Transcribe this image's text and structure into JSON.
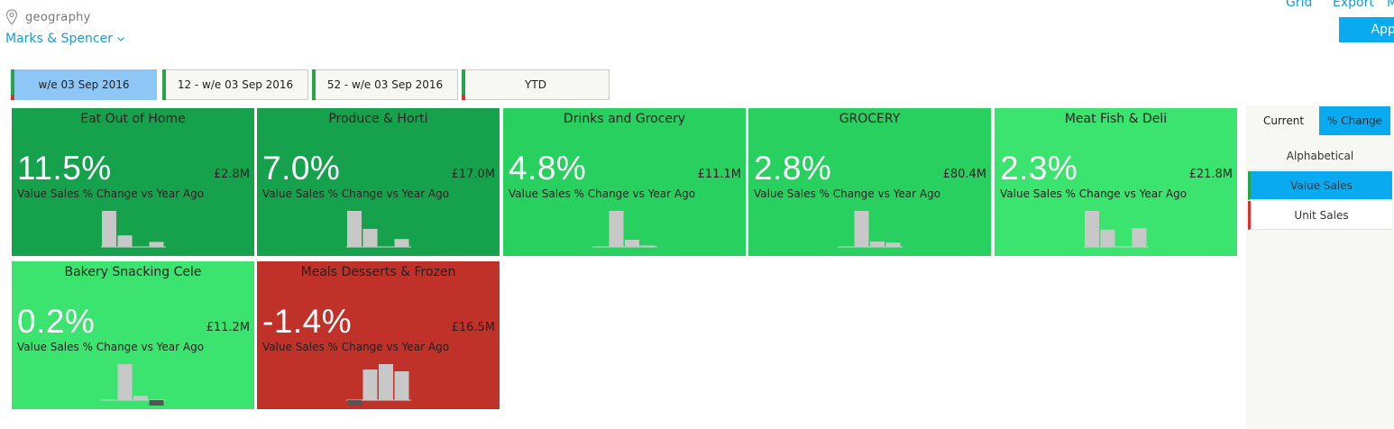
{
  "header": {
    "geo_label": "geography",
    "retailer": "Marks & Spencer",
    "links": [
      "Grid",
      "Export",
      "M"
    ],
    "apply_label": "Apply"
  },
  "period_tabs": [
    {
      "label": "w/e 03 Sep 2016",
      "active": true
    },
    {
      "label": "12 - w/e 03 Sep 2016",
      "active": false
    },
    {
      "label": "52 - w/e 03 Sep 2016",
      "active": false
    },
    {
      "label": "YTD",
      "active": false
    }
  ],
  "metric_caption": "Value Sales % Change vs Year Ago",
  "tiles": [
    {
      "name": "Eat Out of Home",
      "pct": "11.5%",
      "value": "£2.8M",
      "color": "#16a24c",
      "bars": [
        1.0,
        0.32,
        0.0,
        0.14
      ]
    },
    {
      "name": "Produce & Horti",
      "pct": "7.0%",
      "value": "£17.0M",
      "color": "#16a24c",
      "bars": [
        1.0,
        0.5,
        0.0,
        0.22
      ]
    },
    {
      "name": "Drinks and Grocery",
      "pct": "4.8%",
      "value": "£11.1M",
      "color": "#28d05f",
      "bars": [
        0.0,
        1.0,
        0.2,
        0.04
      ]
    },
    {
      "name": "GROCERY",
      "pct": "2.8%",
      "value": "£80.4M",
      "color": "#28d05f",
      "bars": [
        0.0,
        1.0,
        0.15,
        0.12
      ]
    },
    {
      "name": "Meat Fish & Deli",
      "pct": "2.3%",
      "value": "£21.8M",
      "color": "#3ae46f",
      "bars": [
        1.0,
        0.48,
        0.0,
        0.52
      ]
    },
    {
      "name": "Bakery Snacking Cele",
      "pct": "0.2%",
      "value": "£11.2M",
      "color": "#3ae46f",
      "bars": [
        0.0,
        1.0,
        0.12,
        -0.18
      ]
    },
    {
      "name": "Meals Desserts & Frozen",
      "pct": "-1.4%",
      "value": "£16.5M",
      "color": "#bf3129",
      "bars": [
        -0.22,
        0.85,
        1.0,
        0.8
      ]
    }
  ],
  "view_toggle": {
    "current": "Current",
    "change": "% Change",
    "active": "change"
  },
  "sort_options": [
    {
      "label": "Alphabetical",
      "active": false
    },
    {
      "label": "Value Sales",
      "active": true
    },
    {
      "label": "Unit Sales",
      "active": false
    }
  ],
  "colors": {
    "accent": "#0aaaf0",
    "link": "#1a9ad6",
    "positive_dark": "#16a24c",
    "positive_mid": "#28d05f",
    "positive_light": "#3ae46f",
    "negative": "#bf3129"
  }
}
